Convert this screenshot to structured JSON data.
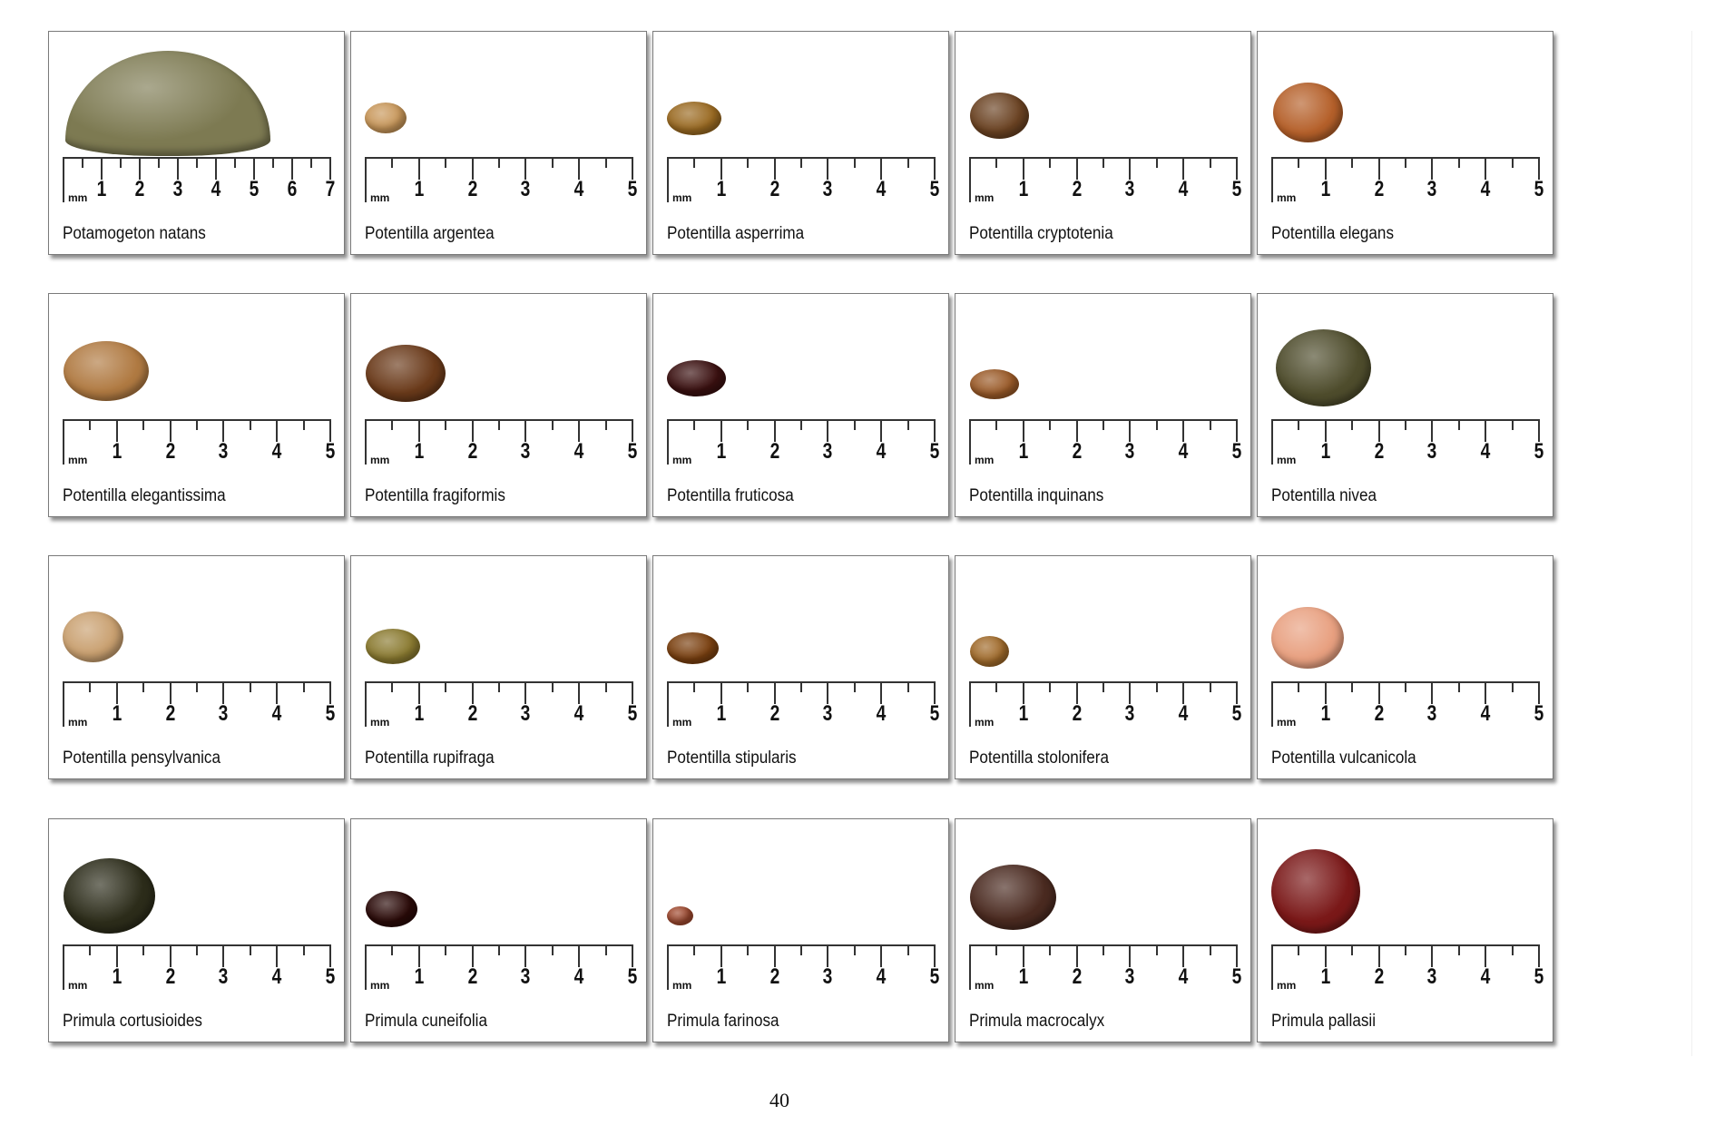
{
  "page_number": "40",
  "ruler_unit": "mm",
  "specimens": [
    {
      "name": "Potamogeton natans",
      "ruler_max_mm": 7,
      "seed_color": "#7d7a52"
    },
    {
      "name": "Potentilla argentea",
      "ruler_max_mm": 5,
      "seed_color": "#c8975a"
    },
    {
      "name": "Potentilla asperrima",
      "ruler_max_mm": 5,
      "seed_color": "#9a6a22"
    },
    {
      "name": "Potentilla cryptotenia",
      "ruler_max_mm": 5,
      "seed_color": "#6a4222"
    },
    {
      "name": "Potentilla elegans",
      "ruler_max_mm": 5,
      "seed_color": "#b5602a"
    },
    {
      "name": "Potentilla elegantissima",
      "ruler_max_mm": 5,
      "seed_color": "#b07a42"
    },
    {
      "name": "Potentilla fragiformis",
      "ruler_max_mm": 5,
      "seed_color": "#6a3a1a"
    },
    {
      "name": "Potentilla fruticosa",
      "ruler_max_mm": 5,
      "seed_color": "#3a1010"
    },
    {
      "name": "Potentilla inquinans",
      "ruler_max_mm": 5,
      "seed_color": "#9a5a28"
    },
    {
      "name": "Potentilla nivea",
      "ruler_max_mm": 5,
      "seed_color": "#4e4c2c"
    },
    {
      "name": "Potentilla pensylvanica",
      "ruler_max_mm": 5,
      "seed_color": "#c9a070"
    },
    {
      "name": "Potentilla rupifraga",
      "ruler_max_mm": 5,
      "seed_color": "#8a7a30"
    },
    {
      "name": "Potentilla stipularis",
      "ruler_max_mm": 5,
      "seed_color": "#7a4010"
    },
    {
      "name": "Potentilla stolonifera",
      "ruler_max_mm": 5,
      "seed_color": "#a06a2a"
    },
    {
      "name": "Potentilla vulcanicola",
      "ruler_max_mm": 5,
      "seed_color": "#e8a080"
    },
    {
      "name": "Primula cortusioides",
      "ruler_max_mm": 5,
      "seed_color": "#2c2c1a"
    },
    {
      "name": "Primula cuneifolia",
      "ruler_max_mm": 5,
      "seed_color": "#2a0a08"
    },
    {
      "name": "Primula farinosa",
      "ruler_max_mm": 5,
      "seed_color": "#a04a30"
    },
    {
      "name": "Primula macrocalyx",
      "ruler_max_mm": 5,
      "seed_color": "#4a2a20"
    },
    {
      "name": "Primula pallasii",
      "ruler_max_mm": 5,
      "seed_color": "#7a1818"
    }
  ]
}
